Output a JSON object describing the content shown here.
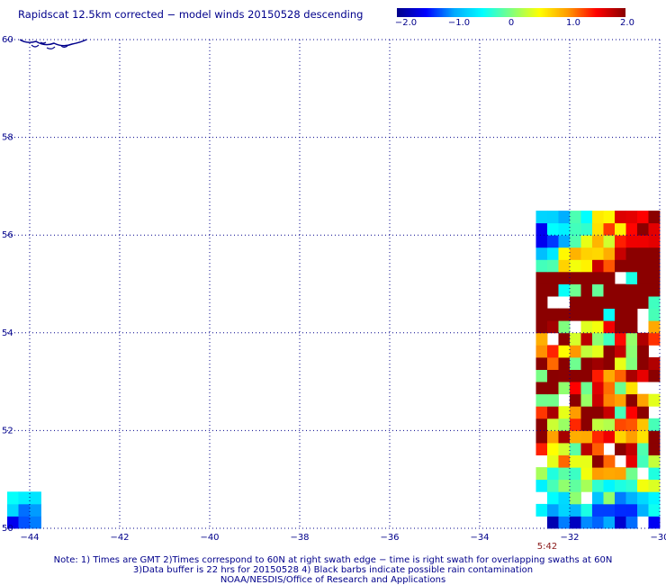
{
  "title": "Rapidscat 12.5km corrected − model winds 20150528 descending",
  "colorbar": {
    "ticks": [
      "−2.0",
      "−1.0",
      "0",
      "1.0",
      "2.0"
    ],
    "tick_values": [
      -2,
      -1,
      0,
      1,
      2
    ],
    "range": [
      -2.0,
      2.0
    ],
    "colors": [
      "#00008b",
      "#0000ff",
      "#00aaff",
      "#00ffff",
      "#7fff7f",
      "#ffff00",
      "#ff9900",
      "#ff0000",
      "#8b0000"
    ]
  },
  "chart_data": {
    "type": "heatmap",
    "title": "Rapidscat 12.5km corrected − model winds 20150528 descending",
    "xlim": [
      -44.5,
      -30
    ],
    "ylim": [
      50,
      60
    ],
    "x_ticks": [
      -44,
      -42,
      -40,
      -38,
      -36,
      -34,
      -32,
      -30
    ],
    "x_tick_labels": [
      "−44",
      "−42",
      "−40",
      "−38",
      "−36",
      "−34",
      "−32",
      "−30"
    ],
    "y_ticks": [
      50,
      52,
      54,
      56,
      58,
      60
    ],
    "y_tick_labels": [
      "50",
      "52",
      "54",
      "56",
      "58",
      "60"
    ],
    "grid": true,
    "swath_time_label": "5:42",
    "swath_time_lon": -32.5,
    "swaths": [
      {
        "lon_range": [
          -32.75,
          -30
        ],
        "lat_range": [
          50,
          56.5
        ],
        "cell_deg": 0.125
      },
      {
        "lon_range": [
          -44.5,
          -43.75
        ],
        "lat_range": [
          50,
          50.6
        ],
        "cell_deg": 0.125
      }
    ],
    "value_range": [
      -2.0,
      2.0
    ]
  },
  "notes": [
    "Note: 1) Times are GMT 2)Times correspond to 60N at right swath edge − time is right swath for overlapping swaths at 60N",
    "3)Data buffer is 22 hrs for 20150528 4) Black barbs indicate possible rain contamination",
    "NOAA/NESDIS/Office of Research and Applications"
  ]
}
